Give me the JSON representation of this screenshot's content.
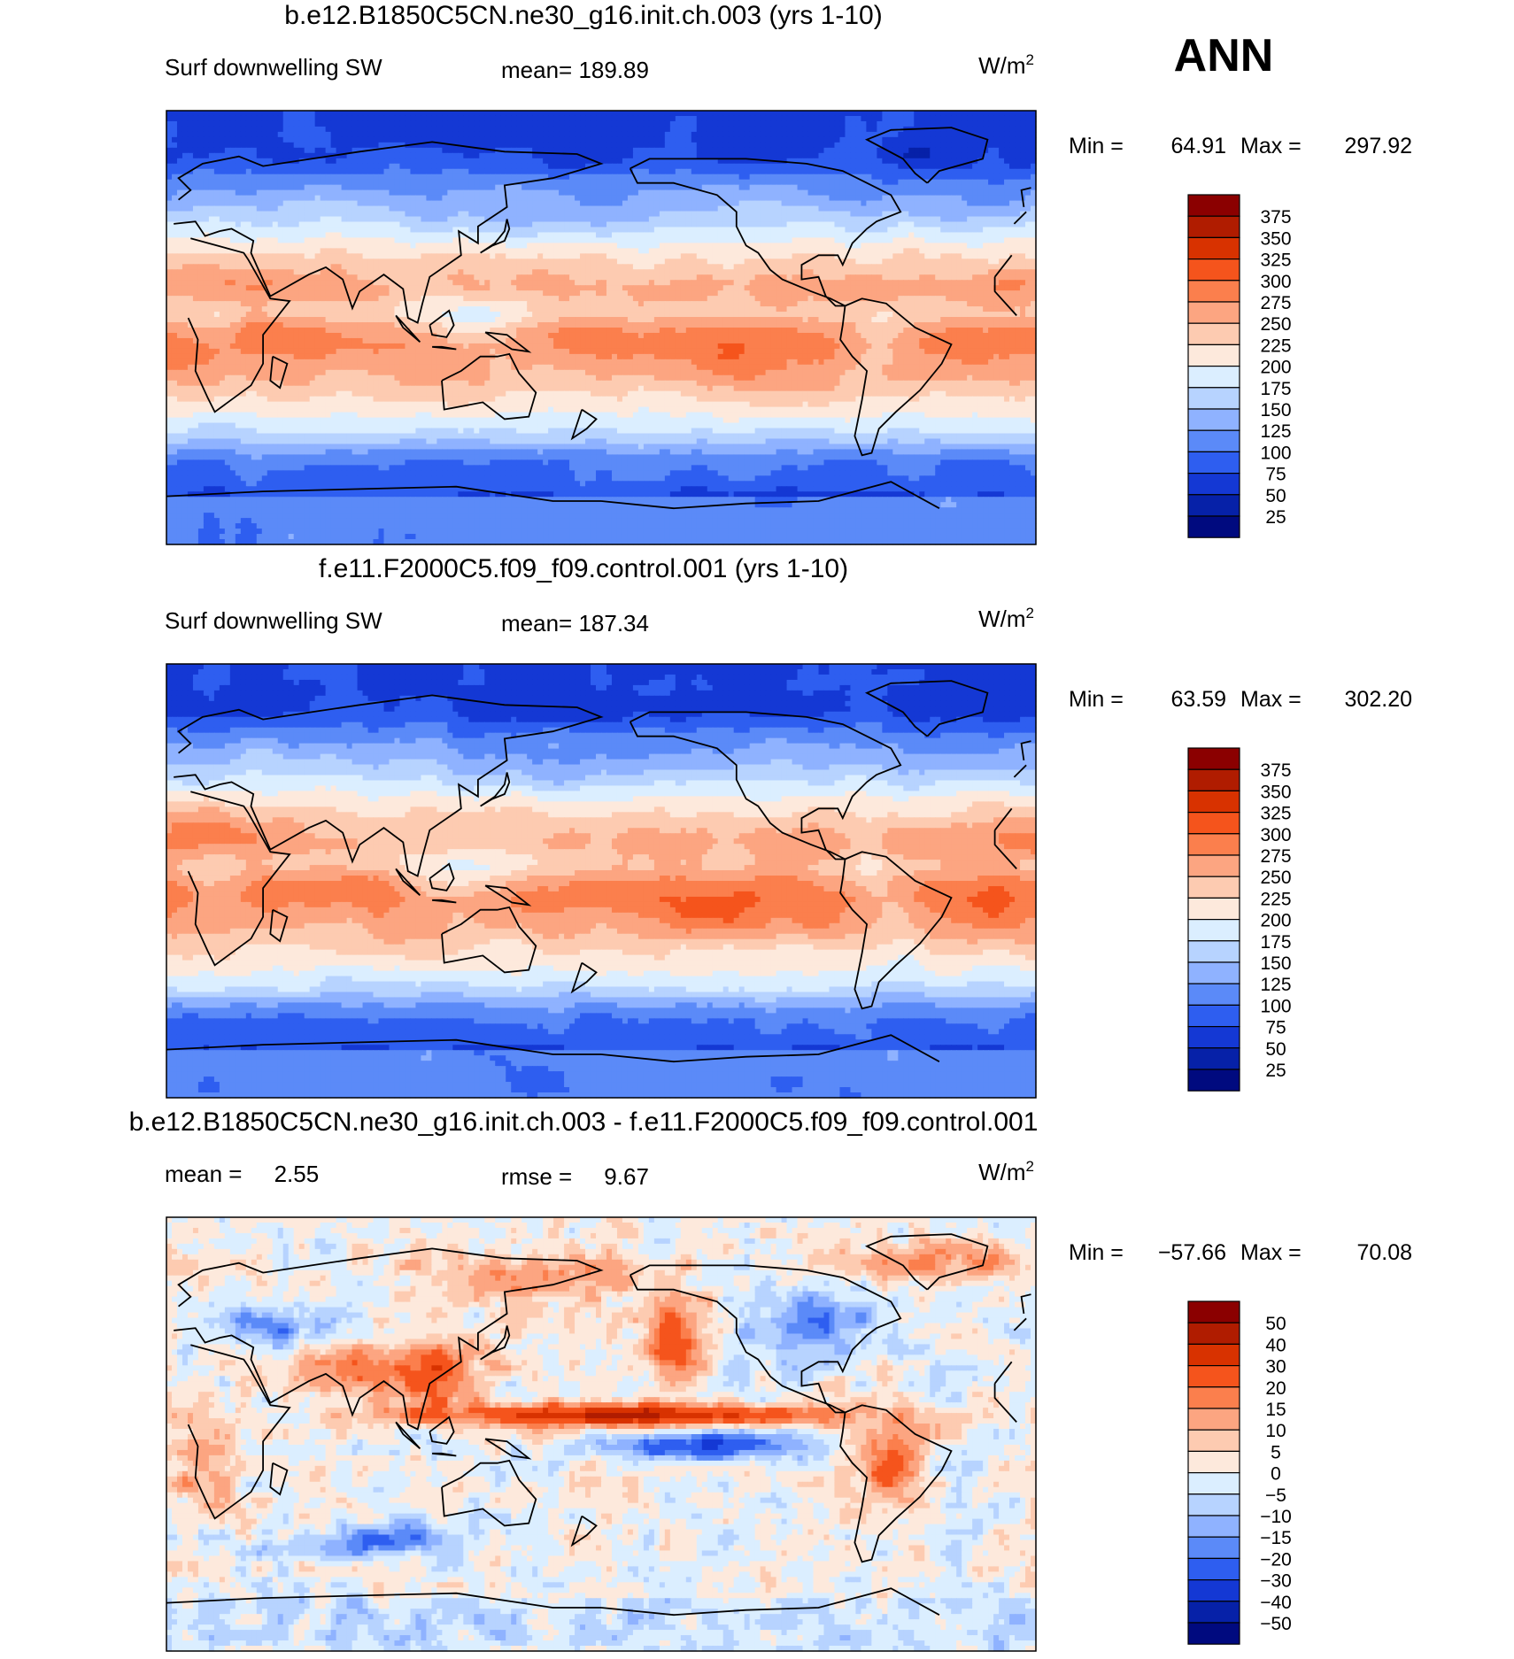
{
  "season": "ANN",
  "panels": [
    {
      "title": "b.e12.B1850C5CN.ne30_g16.init.ch.003 (yrs 1-10)",
      "left_label": "Surf downwelling SW",
      "mid_label": "mean= 189.89",
      "units": "W/m",
      "units_exp": "2",
      "minmax": {
        "min_label": "Min =",
        "min": "64.91",
        "max_label": "Max =",
        "max": "297.92"
      },
      "colorbar": {
        "labels": [
          "375",
          "350",
          "325",
          "300",
          "275",
          "250",
          "225",
          "200",
          "175",
          "150",
          "125",
          "100",
          "75",
          "50",
          "25"
        ],
        "colors": [
          "#8b0000",
          "#b01c00",
          "#d83200",
          "#f5541c",
          "#fb7f4d",
          "#fca581",
          "#fdcbb1",
          "#fde9dc",
          "#dbeeff",
          "#b7d3ff",
          "#8fb2ff",
          "#5b8af8",
          "#2e5ef0",
          "#1438d4",
          "#0621a8",
          "#000a7f"
        ]
      },
      "field": "model"
    },
    {
      "title": "f.e11.F2000C5.f09_f09.control.001 (yrs 1-10)",
      "left_label": "Surf downwelling SW",
      "mid_label": "mean= 187.34",
      "units": "W/m",
      "units_exp": "2",
      "minmax": {
        "min_label": "Min =",
        "min": "63.59",
        "max_label": "Max =",
        "max": "302.20"
      },
      "colorbar": {
        "labels": [
          "375",
          "350",
          "325",
          "300",
          "275",
          "250",
          "225",
          "200",
          "175",
          "150",
          "125",
          "100",
          "75",
          "50",
          "25"
        ],
        "colors": [
          "#8b0000",
          "#b01c00",
          "#d83200",
          "#f5541c",
          "#fb7f4d",
          "#fca581",
          "#fdcbb1",
          "#fde9dc",
          "#dbeeff",
          "#b7d3ff",
          "#8fb2ff",
          "#5b8af8",
          "#2e5ef0",
          "#1438d4",
          "#0621a8",
          "#000a7f"
        ]
      },
      "field": "control"
    },
    {
      "title": "b.e12.B1850C5CN.ne30_g16.init.ch.003 - f.e11.F2000C5.f09_f09.control.001",
      "left_label": "mean =     2.55",
      "mid_label": "rmse =     9.67",
      "units": "W/m",
      "units_exp": "2",
      "minmax": {
        "min_label": "Min =",
        "min": "−57.66",
        "max_label": "Max =",
        "max": "70.08"
      },
      "colorbar": {
        "labels": [
          "50",
          "40",
          "30",
          "20",
          "15",
          "10",
          "5",
          "0",
          "−5",
          "−10",
          "−15",
          "−20",
          "−30",
          "−40",
          "−50"
        ],
        "colors": [
          "#8b0000",
          "#b01c00",
          "#d83200",
          "#f5541c",
          "#fb7f4d",
          "#fca581",
          "#fdcbb1",
          "#fde9dc",
          "#dbeeff",
          "#b7d3ff",
          "#8fb2ff",
          "#5b8af8",
          "#2e5ef0",
          "#1438d4",
          "#0621a8",
          "#000a7f"
        ]
      },
      "field": "difference"
    }
  ],
  "chart_data": [
    {
      "type": "heatmap",
      "title": "b.e12.B1850C5CN.ne30_g16.init.ch.003 (yrs 1-10)",
      "variable": "Surf downwelling SW",
      "units": "W/m2",
      "mean": 189.89,
      "min": 64.91,
      "max": 297.92,
      "contour_levels": [
        25,
        50,
        75,
        100,
        125,
        150,
        175,
        200,
        225,
        250,
        275,
        300,
        325,
        350,
        375
      ]
    },
    {
      "type": "heatmap",
      "title": "f.e11.F2000C5.f09_f09.control.001 (yrs 1-10)",
      "variable": "Surf downwelling SW",
      "units": "W/m2",
      "mean": 187.34,
      "min": 63.59,
      "max": 302.2,
      "contour_levels": [
        25,
        50,
        75,
        100,
        125,
        150,
        175,
        200,
        225,
        250,
        275,
        300,
        325,
        350,
        375
      ]
    },
    {
      "type": "heatmap",
      "title": "b.e12.B1850C5CN.ne30_g16.init.ch.003 - f.e11.F2000C5.f09_f09.control.001",
      "units": "W/m2",
      "mean": 2.55,
      "rmse": 9.67,
      "min": -57.66,
      "max": 70.08,
      "contour_levels": [
        -50,
        -40,
        -30,
        -20,
        -15,
        -10,
        -5,
        0,
        5,
        10,
        15,
        20,
        30,
        40,
        50
      ]
    }
  ]
}
